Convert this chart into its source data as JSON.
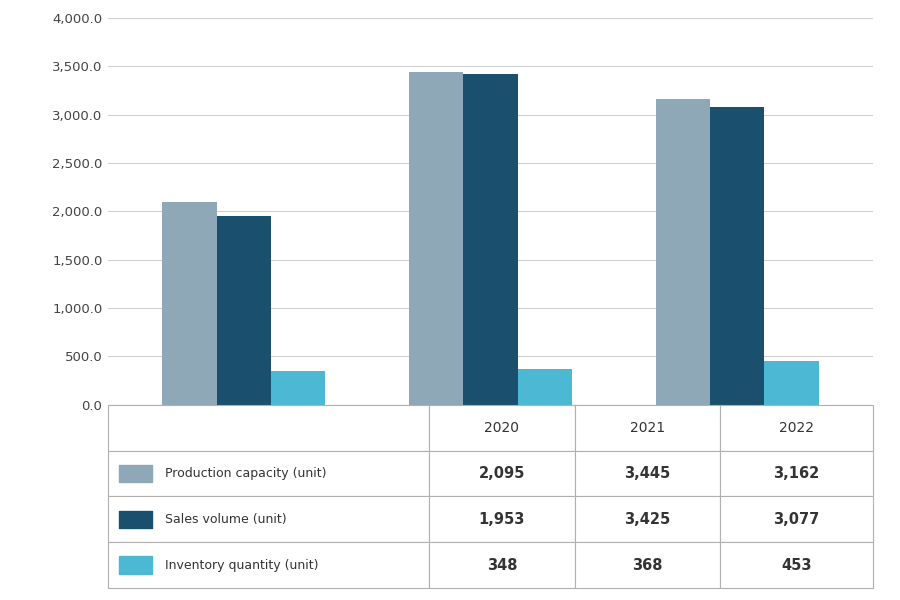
{
  "years": [
    "2020",
    "2021",
    "2022"
  ],
  "series": {
    "Production capacity (unit)": [
      2095,
      3445,
      3162
    ],
    "Sales volume (unit)": [
      1953,
      3425,
      3077
    ],
    "Inventory quantity (unit)": [
      348,
      368,
      453
    ]
  },
  "colors": {
    "Production capacity (unit)": "#8fa8b8",
    "Sales volume (unit)": "#1a4f6e",
    "Inventory quantity (unit)": "#4db8d4"
  },
  "ylim": [
    0,
    4000
  ],
  "yticks": [
    0,
    500,
    1000,
    1500,
    2000,
    2500,
    3000,
    3500,
    4000
  ],
  "ytick_labels": [
    "0.0",
    "500.0",
    "1,000.0",
    "1,500.0",
    "2,000.0",
    "2,500.0",
    "3,000.0",
    "3,500.0",
    "4,000.0"
  ],
  "background_color": "#ffffff",
  "table_rows": [
    "Production capacity (unit)",
    "Sales volume (unit)",
    "Inventory quantity (unit)"
  ],
  "table_formatted": [
    [
      "2,095",
      "3,445",
      "3,162"
    ],
    [
      "1,953",
      "3,425",
      "3,077"
    ],
    [
      "348",
      "368",
      "453"
    ]
  ],
  "bar_width": 0.22
}
